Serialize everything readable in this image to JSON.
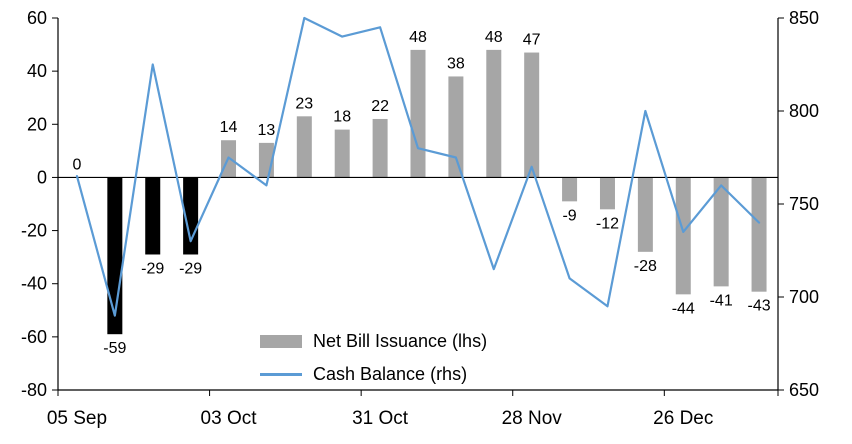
{
  "chart_data": {
    "type": "bar",
    "subtype": "bar+line-combo",
    "n_points": 19,
    "x_ticks": [
      {
        "index": 0,
        "label": "05 Sep"
      },
      {
        "index": 4,
        "label": "03 Oct"
      },
      {
        "index": 8,
        "label": "31 Oct"
      },
      {
        "index": 12,
        "label": "28 Nov"
      },
      {
        "index": 16,
        "label": "26 Dec"
      }
    ],
    "left_axis": {
      "min": -80,
      "max": 60,
      "ticks": [
        60,
        40,
        20,
        0,
        -20,
        -40,
        -60,
        -80
      ]
    },
    "right_axis": {
      "min": 650,
      "max": 850,
      "ticks": [
        850,
        800,
        750,
        700,
        650
      ]
    },
    "series": [
      {
        "name": "Net Bill Issuance (lhs)",
        "type": "bar",
        "axis": "left",
        "values": [
          0,
          -59,
          -29,
          -29,
          14,
          13,
          23,
          18,
          22,
          48,
          38,
          48,
          47,
          -9,
          -12,
          -28,
          -44,
          -41,
          -43
        ],
        "default_color": "#a6a6a6",
        "black_indices": [
          1,
          2,
          3
        ],
        "black_color": "#000000"
      },
      {
        "name": "Cash Balance (rhs)",
        "type": "line",
        "axis": "right",
        "color": "#5b9bd5",
        "values": [
          765,
          690,
          825,
          730,
          775,
          760,
          850,
          840,
          845,
          780,
          775,
          715,
          770,
          710,
          695,
          800,
          735,
          760,
          740
        ]
      }
    ],
    "legend": [
      {
        "label": "Net Bill Issuance (lhs)",
        "swatch": "bar",
        "color": "#a6a6a6"
      },
      {
        "label": "Cash Balance (rhs)",
        "swatch": "line",
        "color": "#5b9bd5"
      }
    ],
    "grid": "off",
    "legend_position": "inside-bottom-center"
  }
}
